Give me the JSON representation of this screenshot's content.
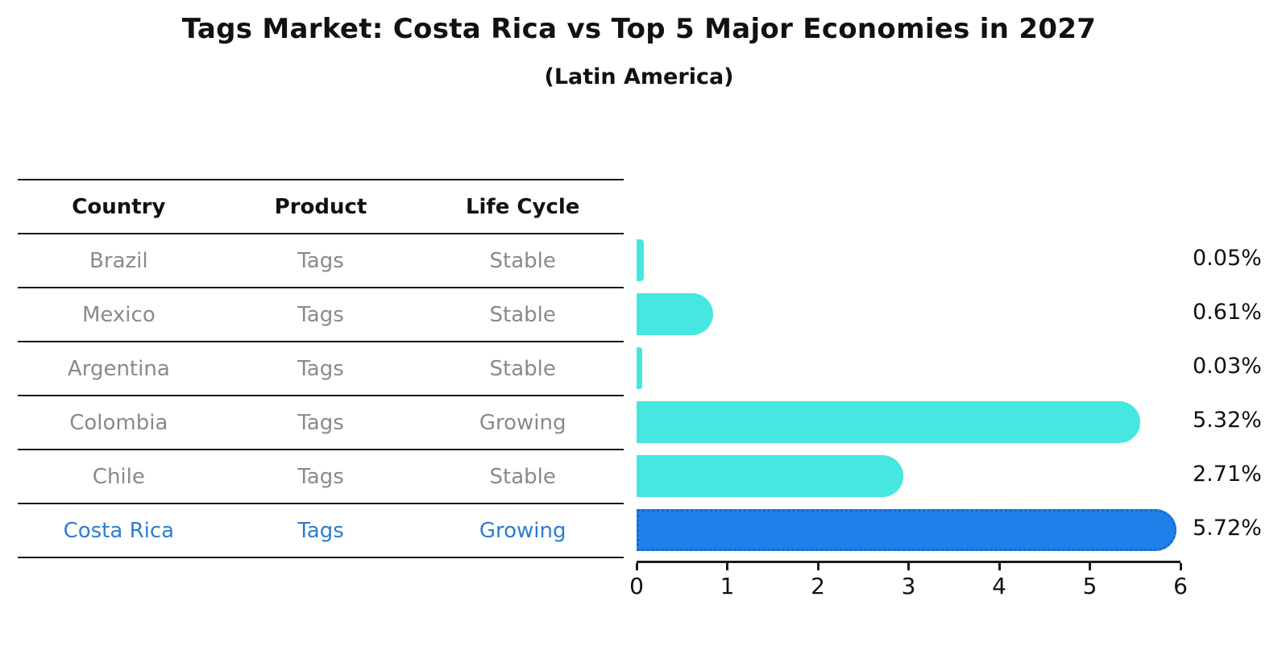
{
  "title": "Tags Market: Costa Rica vs Top 5 Major Economies in 2027",
  "subtitle": "(Latin America)",
  "table": {
    "headers": [
      "Country",
      "Product",
      "Life Cycle"
    ],
    "rows": [
      {
        "country": "Brazil",
        "product": "Tags",
        "life_cycle": "Stable",
        "highlight": false
      },
      {
        "country": "Mexico",
        "product": "Tags",
        "life_cycle": "Stable",
        "highlight": false
      },
      {
        "country": "Argentina",
        "product": "Tags",
        "life_cycle": "Stable",
        "highlight": false
      },
      {
        "country": "Colombia",
        "product": "Tags",
        "life_cycle": "Growing",
        "highlight": false
      },
      {
        "country": "Chile",
        "product": "Tags",
        "life_cycle": "Stable",
        "highlight": false
      },
      {
        "country": "Costa Rica",
        "product": "Tags",
        "life_cycle": "Growing",
        "highlight": true
      }
    ]
  },
  "chart_data": {
    "type": "bar",
    "orientation": "horizontal",
    "title": "Tags Market: Costa Rica vs Top 5 Major Economies in 2027 (Latin America)",
    "categories": [
      "Brazil",
      "Mexico",
      "Argentina",
      "Colombia",
      "Chile",
      "Costa Rica"
    ],
    "values": [
      0.05,
      0.61,
      0.03,
      5.32,
      2.71,
      5.72
    ],
    "value_labels": [
      "0.05%",
      "0.61%",
      "0.03%",
      "5.32%",
      "2.71%",
      "5.72%"
    ],
    "xlabel": "",
    "ylabel": "",
    "xlim": [
      0,
      6
    ],
    "x_ticks": [
      0,
      1,
      2,
      3,
      4,
      5,
      6
    ],
    "grid": false,
    "legend": false,
    "highlight_index": 5
  },
  "colors": {
    "bar_default": "#45e7e0",
    "bar_highlight": "#1e80e8",
    "bar_highlight_border": "#1668c8",
    "highlight_text": "#2e7cd1",
    "table_text": "#8a8a8a",
    "heading_text": "#111111",
    "line": "#1a1a1a"
  }
}
